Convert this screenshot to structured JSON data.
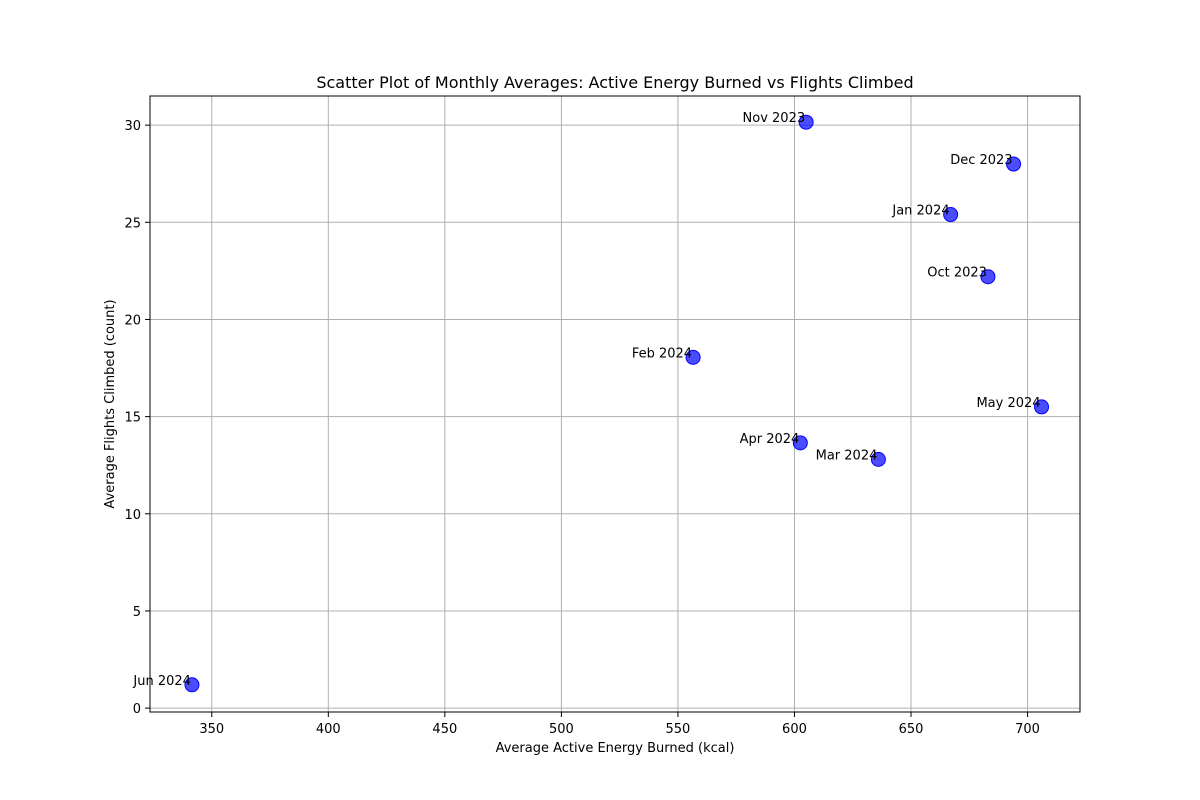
{
  "chart_data": {
    "type": "scatter",
    "title": "Scatter Plot of Monthly Averages: Active Energy Burned vs Flights Climbed",
    "xlabel": "Average Active Energy Burned (kcal)",
    "ylabel": "Average Flights Climbed (count)",
    "xlim": [
      323.5,
      722.5
    ],
    "ylim": [
      -0.2,
      31.5
    ],
    "xticks": [
      350,
      400,
      450,
      500,
      550,
      600,
      650,
      700
    ],
    "yticks": [
      0,
      5,
      10,
      15,
      20,
      25,
      30
    ],
    "grid": true,
    "marker_color": "#0000ff",
    "points": [
      {
        "label": "Oct 2023",
        "x": 683,
        "y": 22.2
      },
      {
        "label": "Nov 2023",
        "x": 605,
        "y": 30.15
      },
      {
        "label": "Dec 2023",
        "x": 694,
        "y": 28.0
      },
      {
        "label": "Jan 2024",
        "x": 667,
        "y": 25.4
      },
      {
        "label": "Feb 2024",
        "x": 556.5,
        "y": 18.05
      },
      {
        "label": "Mar 2024",
        "x": 636,
        "y": 12.8
      },
      {
        "label": "Apr 2024",
        "x": 602.5,
        "y": 13.65
      },
      {
        "label": "May 2024",
        "x": 706,
        "y": 15.5
      },
      {
        "label": "Jun 2024",
        "x": 341.5,
        "y": 1.2
      }
    ]
  }
}
